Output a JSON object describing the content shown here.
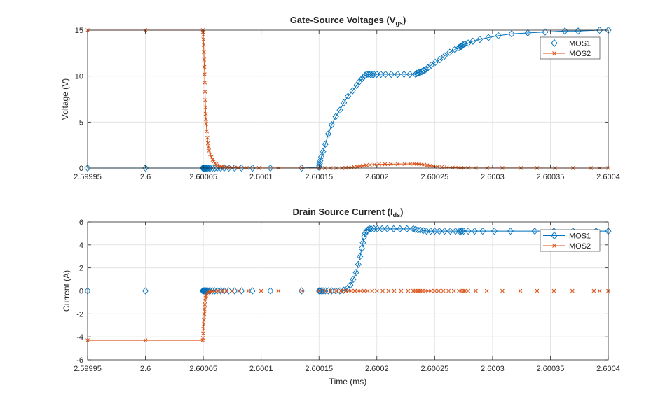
{
  "colors": {
    "MOS1": "#0072BD",
    "MOS2": "#D95319",
    "grid": "#dfdfdf",
    "axis": "#262626"
  },
  "chart_data": [
    {
      "type": "line",
      "title_main": "Gate-Source Voltages (V",
      "title_sub": "gs",
      "title_end": ")",
      "xlabel": "",
      "ylabel": "Voltage (V)",
      "xlim": [
        2.59995,
        2.6004
      ],
      "ylim": [
        0,
        15
      ],
      "grid": true,
      "legend_position": "top-right",
      "xticks": [
        2.59995,
        2.6,
        2.60005,
        2.6001,
        2.60015,
        2.6002,
        2.60025,
        2.6003,
        2.60035,
        2.6004
      ],
      "xtick_labels": [
        "2.59995",
        "2.6",
        "2.60005",
        "2.6001",
        "2.60015",
        "2.6002",
        "2.60025",
        "2.6003",
        "2.60035",
        "2.6004"
      ],
      "yticks": [
        0,
        5,
        10,
        15
      ],
      "ytick_labels": [
        "0",
        "5",
        "10",
        "15"
      ],
      "series": [
        {
          "name": "MOS1",
          "marker": "diamond",
          "x": [
            2.59995,
            2.6,
            2.6000495,
            2.6000497,
            2.6000499,
            2.6000501,
            2.6000503,
            2.6000505,
            2.600051,
            2.6000515,
            2.600052,
            2.6000525,
            2.600053,
            2.600054,
            2.600055,
            2.600056,
            2.600058,
            2.60006,
            2.600062,
            2.600065,
            2.600068,
            2.600072,
            2.600077,
            2.600083,
            2.6000925,
            2.600108,
            2.600135,
            2.60015,
            2.6001503,
            2.6001506,
            2.600151,
            2.600152,
            2.6001535,
            2.6001555,
            2.600158,
            2.600161,
            2.6001645,
            2.600168,
            2.6001715,
            2.600175,
            2.600179,
            2.6001825,
            2.600185,
            2.600187,
            2.6001885,
            2.60019,
            2.6001915,
            2.600193,
            2.6001945,
            2.600196,
            2.6001975,
            2.6002,
            2.6002035,
            2.6002075,
            2.6002125,
            2.600218,
            2.6002235,
            2.6002285,
            2.6002335,
            2.6002345,
            2.6002355,
            2.6002365,
            2.6002375,
            2.600239,
            2.6002405,
            2.600242,
            2.600244,
            2.600247,
            2.6002505,
            2.6002545,
            2.6002585,
            2.600263,
            2.6002675,
            2.600271,
            2.600272,
            2.600273,
            2.6002735,
            2.6002745,
            2.600276,
            2.600279,
            2.600283,
            2.600289,
            2.6002965,
            2.600305,
            2.6003165,
            2.6003305,
            2.6003455,
            2.6003625,
            2.600374,
            2.6003925,
            2.6004
          ],
          "y": [
            0,
            0,
            0,
            0,
            0,
            0,
            0,
            0,
            0,
            0,
            0,
            0,
            0,
            0,
            0,
            0,
            0,
            0,
            0,
            0,
            0,
            0,
            0,
            0,
            0,
            0,
            0,
            0.1,
            0.3,
            0.5,
            0.8,
            1.2,
            1.8,
            2.6,
            3.7,
            4.7,
            5.6,
            6.3,
            7.1,
            7.8,
            8.4,
            9.0,
            9.4,
            9.7,
            9.9,
            10.1,
            10.2,
            10.2,
            10.2,
            10.2,
            10.2,
            10.2,
            10.2,
            10.2,
            10.2,
            10.2,
            10.2,
            10.2,
            10.2,
            10.3,
            10.3,
            10.4,
            10.4,
            10.5,
            10.6,
            10.7,
            10.9,
            11.2,
            11.5,
            11.8,
            12.2,
            12.6,
            12.9,
            13.1,
            13.2,
            13.2,
            13.3,
            13.4,
            13.5,
            13.6,
            13.8,
            14.0,
            14.2,
            14.4,
            14.6,
            14.7,
            14.8,
            14.9,
            14.9,
            15.0,
            15.0
          ]
        },
        {
          "name": "MOS2",
          "marker": "x",
          "x": [
            2.59995,
            2.6,
            2.6000495,
            2.6000497,
            2.6000499,
            2.6000501,
            2.6000503,
            2.6000505,
            2.6000507,
            2.6000509,
            2.6000511,
            2.6000513,
            2.6000515,
            2.6000517,
            2.6000519,
            2.6000521,
            2.6000523,
            2.6000525,
            2.600053,
            2.6000535,
            2.600054,
            2.6000545,
            2.600055,
            2.600056,
            2.600057,
            2.600058,
            2.600059,
            2.60006,
            2.600061,
            2.600062,
            2.600064,
            2.600066,
            2.600068,
            2.600071,
            2.600075,
            2.60008,
            2.6000875,
            2.600098,
            2.600115,
            2.600135,
            2.60015,
            2.600155,
            2.60016,
            2.600165,
            2.60017,
            2.600173,
            2.6001755,
            2.600178,
            2.6001805,
            2.600183,
            2.6001855,
            2.600188,
            2.600191,
            2.600194,
            2.600198,
            2.600202,
            2.600207,
            2.600212,
            2.600218,
            2.600224,
            2.600229,
            2.6002325,
            2.6002345,
            2.6002365,
            2.6002385,
            2.600241,
            2.6002435,
            2.600246,
            2.600249,
            2.6002525,
            2.600256,
            2.6002605,
            2.6002655,
            2.6002705,
            2.600273,
            2.600275,
            2.600279,
            2.6002855,
            2.6002955,
            2.6003085,
            2.6003245,
            2.6003385,
            2.600354,
            2.6003695,
            2.600385,
            2.6003925,
            2.6004
          ],
          "y": [
            15,
            15,
            15,
            14.8,
            14.5,
            14.0,
            13.4,
            12.6,
            11.8,
            11.0,
            10.2,
            9.3,
            8.3,
            7.4,
            6.6,
            5.9,
            5.3,
            4.8,
            4.0,
            3.3,
            2.7,
            2.3,
            1.9,
            1.5,
            1.2,
            0.9,
            0.7,
            0.5,
            0.4,
            0.3,
            0.2,
            0.15,
            0.1,
            0.08,
            0.05,
            0.03,
            0.02,
            0.01,
            0.01,
            0.01,
            0,
            0,
            0,
            0,
            0,
            0.02,
            0.04,
            0.06,
            0.1,
            0.15,
            0.2,
            0.25,
            0.3,
            0.34,
            0.38,
            0.4,
            0.42,
            0.43,
            0.44,
            0.45,
            0.46,
            0.47,
            0.46,
            0.44,
            0.4,
            0.35,
            0.3,
            0.25,
            0.2,
            0.15,
            0.1,
            0.07,
            0.05,
            0.03,
            0.02,
            0.02,
            0.02,
            0.01,
            0.01,
            0.01,
            0.01,
            0.01,
            0,
            0,
            0,
            0,
            0
          ]
        }
      ]
    },
    {
      "type": "line",
      "title_main": "Drain Source Current (I",
      "title_sub": "ds",
      "title_end": ")",
      "xlabel": "Time (ms)",
      "ylabel": "Current (A)",
      "xlim": [
        2.59995,
        2.6004
      ],
      "ylim": [
        -6,
        6
      ],
      "grid": true,
      "legend_position": "top-right",
      "xticks": [
        2.59995,
        2.6,
        2.60005,
        2.6001,
        2.60015,
        2.6002,
        2.60025,
        2.6003,
        2.60035,
        2.6004
      ],
      "xtick_labels": [
        "2.59995",
        "2.6",
        "2.60005",
        "2.6001",
        "2.60015",
        "2.6002",
        "2.60025",
        "2.6003",
        "2.60035",
        "2.6004"
      ],
      "yticks": [
        -6,
        -4,
        -2,
        0,
        2,
        4,
        6
      ],
      "ytick_labels": [
        "-6",
        "-4",
        "-2",
        "0",
        "2",
        "4",
        "6"
      ],
      "series": [
        {
          "name": "MOS1",
          "marker": "diamond",
          "x": [
            2.59995,
            2.6,
            2.6000495,
            2.6000499,
            2.6000503,
            2.6000507,
            2.6000511,
            2.6000515,
            2.600052,
            2.6000525,
            2.600053,
            2.600054,
            2.600055,
            2.600056,
            2.600058,
            2.60006,
            2.600062,
            2.600065,
            2.600068,
            2.600072,
            2.600077,
            2.600083,
            2.6000925,
            2.600108,
            2.600135,
            2.60015,
            2.6001505,
            2.600151,
            2.600152,
            2.6001535,
            2.6001555,
            2.600158,
            2.600161,
            2.6001645,
            2.600168,
            2.6001715,
            2.6001745,
            2.600177,
            2.6001795,
            2.600182,
            2.600184,
            2.6001855,
            2.600187,
            2.600188,
            2.600189,
            2.60019,
            2.600191,
            2.600192,
            2.6001935,
            2.600195,
            2.6001975,
            2.6002005,
            2.6002045,
            2.600209,
            2.6002145,
            2.60022,
            2.600226,
            2.6002315,
            2.6002335,
            2.6002355,
            2.6002375,
            2.60024,
            2.600243,
            2.6002465,
            2.60025,
            2.600254,
            2.6002585,
            2.6002635,
            2.600268,
            2.6002715,
            2.6002725,
            2.6002735,
            2.600275,
            2.600279,
            2.6002845,
            2.6002915,
            2.6003015,
            2.6003155,
            2.6003365,
            2.600353,
            2.6003695,
            2.6003895,
            2.6004
          ],
          "y": [
            0,
            0,
            0,
            0,
            0,
            0,
            0,
            0,
            0,
            0,
            0,
            0,
            0,
            0,
            0,
            0,
            0,
            0,
            0,
            0,
            0,
            0,
            0,
            0,
            0,
            0,
            0,
            0,
            0,
            0,
            0,
            0,
            0,
            0,
            0,
            0.05,
            0.2,
            0.5,
            1.0,
            1.6,
            2.3,
            3.0,
            3.7,
            4.2,
            4.7,
            5.0,
            5.2,
            5.3,
            5.4,
            5.4,
            5.4,
            5.4,
            5.4,
            5.4,
            5.4,
            5.4,
            5.4,
            5.4,
            5.35,
            5.3,
            5.3,
            5.25,
            5.2,
            5.2,
            5.2,
            5.2,
            5.2,
            5.2,
            5.2,
            5.2,
            5.2,
            5.2,
            5.2,
            5.2,
            5.2,
            5.2,
            5.2,
            5.2,
            5.2,
            5.2,
            5.2,
            5.2,
            5.2
          ]
        },
        {
          "name": "MOS2",
          "marker": "x",
          "x": [
            2.59995,
            2.6,
            2.6000495,
            2.6000497,
            2.6000499,
            2.6000501,
            2.6000503,
            2.6000505,
            2.6000508,
            2.600051,
            2.6000513,
            2.6000516,
            2.600052,
            2.6000525,
            2.600053,
            2.600054,
            2.600055,
            2.600056,
            2.600058,
            2.60006,
            2.600063,
            2.600066,
            2.60007,
            2.600075,
            2.600081,
            2.600089,
            2.6001,
            2.600115,
            2.600135,
            2.60015,
            2.600155,
            2.60016,
            2.600165,
            2.600169,
            2.600173,
            2.6001755,
            2.600178,
            2.600181,
            2.6001835,
            2.600186,
            2.600189,
            2.600192,
            2.600196,
            2.6002,
            2.600205,
            2.60021,
            2.600215,
            2.600221,
            2.600227,
            2.6002315,
            2.6002335,
            2.6002355,
            2.6002375,
            2.6002395,
            2.600242,
            2.6002445,
            2.600247,
            2.60025,
            2.6002535,
            2.6002575,
            2.600262,
            2.6002665,
            2.600271,
            2.600273,
            2.6002745,
            2.600276,
            2.600279,
            2.6002855,
            2.600295,
            2.6003085,
            2.600324,
            2.6003385,
            2.600353,
            2.600369,
            2.6003875,
            2.6003925,
            2.6004
          ],
          "y": [
            -4.3,
            -4.3,
            -4.3,
            -4.1,
            -3.7,
            -3.3,
            -2.9,
            -2.5,
            -2.0,
            -1.6,
            -1.2,
            -0.9,
            -0.6,
            -0.4,
            -0.25,
            -0.15,
            -0.08,
            -0.05,
            -0.03,
            -0.02,
            -0.01,
            -0.01,
            0,
            0,
            0,
            0,
            0,
            0,
            0,
            0,
            0,
            0,
            0,
            0,
            0,
            0,
            0,
            0,
            0,
            0,
            0,
            0,
            0,
            0,
            0,
            0,
            0,
            0,
            0,
            0,
            0,
            0,
            0,
            0,
            0,
            0,
            0,
            0,
            0,
            0,
            0,
            0,
            0,
            0,
            0,
            0,
            0,
            0,
            0,
            0,
            0,
            0,
            0,
            0,
            0,
            0,
            0
          ]
        }
      ]
    }
  ]
}
